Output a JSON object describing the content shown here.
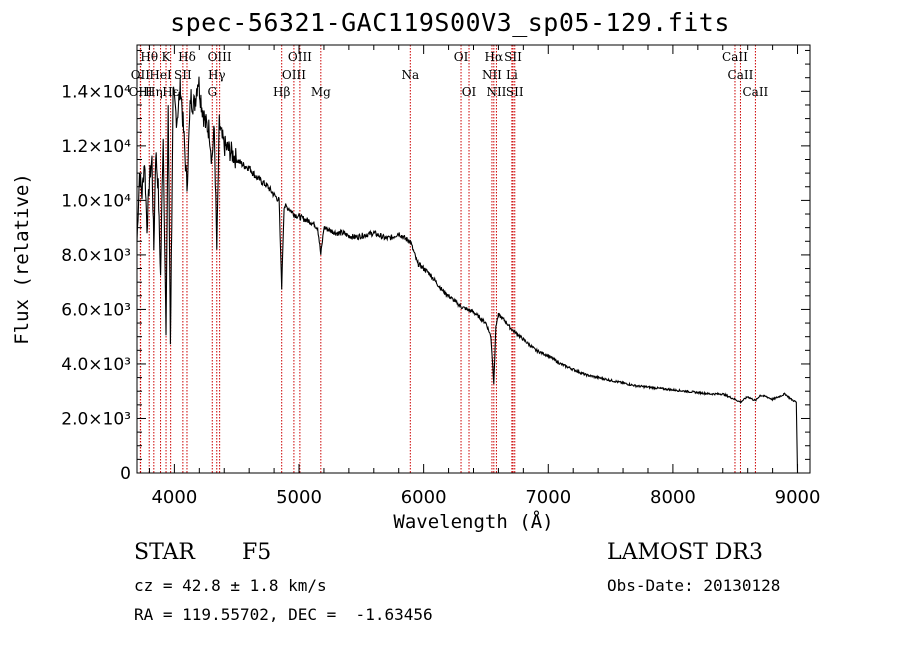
{
  "chart_data": {
    "type": "line",
    "title": "spec-56321-GAC119S00V3_sp05-129.fits",
    "xlabel": "Wavelength (Å)",
    "ylabel": "Flux (relative)",
    "xlim": [
      3700,
      9100
    ],
    "ylim": [
      0,
      15700
    ],
    "x_ticks": [
      4000,
      5000,
      6000,
      7000,
      8000,
      9000
    ],
    "y_ticks": [
      0,
      2000,
      4000,
      6000,
      8000,
      10000,
      12000,
      14000
    ],
    "y_tick_labels": [
      "0",
      "2.0×10³",
      "4.0×10³",
      "6.0×10³",
      "8.0×10³",
      "1.0×10⁴",
      "1.2×10⁴",
      "1.4×10⁴"
    ],
    "series": [
      {
        "name": "spectrum",
        "x": [
          3700,
          3720,
          3740,
          3760,
          3780,
          3800,
          3820,
          3835,
          3850,
          3870,
          3889,
          3910,
          3933,
          3950,
          3968,
          3990,
          4020,
          4050,
          4070,
          4101,
          4130,
          4160,
          4190,
          4220,
          4250,
          4280,
          4300,
          4320,
          4340,
          4360,
          4380,
          4400,
          4450,
          4500,
          4550,
          4600,
          4650,
          4700,
          4750,
          4800,
          4840,
          4861,
          4880,
          4920,
          4960,
          5000,
          5050,
          5100,
          5150,
          5175,
          5200,
          5250,
          5300,
          5350,
          5400,
          5450,
          5500,
          5550,
          5600,
          5650,
          5700,
          5750,
          5800,
          5850,
          5893,
          5950,
          6000,
          6050,
          6100,
          6150,
          6200,
          6250,
          6300,
          6350,
          6400,
          6450,
          6500,
          6540,
          6563,
          6580,
          6600,
          6650,
          6700,
          6750,
          6800,
          6900,
          7000,
          7100,
          7200,
          7300,
          7400,
          7500,
          7600,
          7700,
          7800,
          7900,
          8000,
          8100,
          8200,
          8300,
          8400,
          8498,
          8542,
          8600,
          8662,
          8700,
          8750,
          8800,
          8850,
          8900,
          8950,
          8990,
          9000
        ],
        "y": [
          8500,
          11000,
          10200,
          11500,
          9000,
          10800,
          11500,
          8200,
          11800,
          10500,
          7200,
          12500,
          5000,
          13500,
          4800,
          13800,
          13000,
          14200,
          12800,
          10500,
          13800,
          13500,
          14500,
          13500,
          12800,
          12600,
          11500,
          12600,
          8200,
          12800,
          12300,
          12000,
          11800,
          11500,
          11300,
          11200,
          10900,
          10700,
          10500,
          10200,
          10000,
          6800,
          9800,
          9700,
          9500,
          9400,
          9300,
          9200,
          9000,
          8000,
          9000,
          8900,
          8800,
          8800,
          8700,
          8650,
          8700,
          8750,
          8800,
          8700,
          8600,
          8650,
          8800,
          8600,
          8500,
          7700,
          7500,
          7300,
          7000,
          6700,
          6500,
          6300,
          6100,
          6000,
          5900,
          5700,
          5500,
          5000,
          3300,
          5400,
          5800,
          5600,
          5300,
          5100,
          4900,
          4500,
          4300,
          4000,
          3800,
          3600,
          3500,
          3400,
          3300,
          3200,
          3150,
          3100,
          3050,
          3000,
          2950,
          2900,
          2900,
          2700,
          2600,
          2800,
          2650,
          2850,
          2800,
          2700,
          2800,
          2900,
          2700,
          2600,
          0
        ]
      }
    ],
    "line_markers": [
      {
        "label": "Hθ",
        "wavelength": 3798,
        "row": 1
      },
      {
        "label": "OII",
        "wavelength": 3727,
        "row": 2
      },
      {
        "label": "OIII",
        "wavelength": 3729,
        "row": 3
      },
      {
        "label": "Hη",
        "wavelength": 3835,
        "row": 3
      },
      {
        "label": "HeI",
        "wavelength": 3889,
        "row": 2
      },
      {
        "label": "K",
        "wavelength": 3933,
        "row": 1
      },
      {
        "label": "Hε",
        "wavelength": 3970,
        "row": 3
      },
      {
        "label": "SII",
        "wavelength": 4068,
        "row": 2
      },
      {
        "label": "Hδ",
        "wavelength": 4101,
        "row": 1
      },
      {
        "label": "OIII",
        "wavelength": 4363,
        "row": 1
      },
      {
        "label": "Hγ",
        "wavelength": 4340,
        "row": 2
      },
      {
        "label": "G",
        "wavelength": 4304,
        "row": 3
      },
      {
        "label": "Hβ",
        "wavelength": 4861,
        "row": 3
      },
      {
        "label": "OIII",
        "wavelength": 4959,
        "row": 2
      },
      {
        "label": "OIII",
        "wavelength": 5007,
        "row": 1
      },
      {
        "label": "Mg",
        "wavelength": 5175,
        "row": 3
      },
      {
        "label": "Na",
        "wavelength": 5893,
        "row": 2
      },
      {
        "label": "OI",
        "wavelength": 6300,
        "row": 1
      },
      {
        "label": "OI",
        "wavelength": 6364,
        "row": 3
      },
      {
        "label": "Hα",
        "wavelength": 6563,
        "row": 1
      },
      {
        "label": "NII",
        "wavelength": 6548,
        "row": 2
      },
      {
        "label": "NII",
        "wavelength": 6584,
        "row": 3
      },
      {
        "label": "SII",
        "wavelength": 6717,
        "row": 1
      },
      {
        "label": "Li",
        "wavelength": 6708,
        "row": 2
      },
      {
        "label": "SII",
        "wavelength": 6731,
        "row": 3
      },
      {
        "label": "CaII",
        "wavelength": 8498,
        "row": 1
      },
      {
        "label": "CaII",
        "wavelength": 8542,
        "row": 2
      },
      {
        "label": "CaII",
        "wavelength": 8662,
        "row": 3
      }
    ]
  },
  "info": {
    "class_label": "STAR",
    "subclass": "F5",
    "survey": "LAMOST DR3",
    "redshift_line": "cz = 42.8 ± 1.8 km/s",
    "obs_date": "Obs-Date: 20130128",
    "coords": "RA = 119.55702, DEC =  -1.63456"
  }
}
